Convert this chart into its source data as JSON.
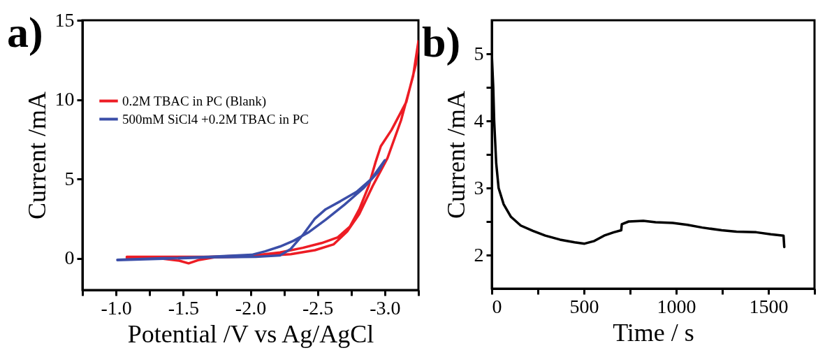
{
  "chart_data": [
    {
      "type": "line",
      "annotations": [
        "a)"
      ],
      "xlabel": "Potential /V vs Ag/AgCl",
      "ylabel": "Current /mA",
      "xlim": [
        -0.75,
        -3.25
      ],
      "ylim": [
        -2,
        15
      ],
      "xticks": [
        {
          "value": -0.75,
          "label": null
        },
        {
          "value": -1,
          "label": "-1.0"
        },
        {
          "value": -1.25,
          "label": null
        },
        -1.5,
        {
          "value": -1.75,
          "label": null
        },
        {
          "value": -2,
          "label": "-2.0"
        },
        {
          "value": -2.25,
          "label": null
        },
        -2.5,
        {
          "value": -2.75,
          "label": null
        },
        {
          "value": -3,
          "label": "-3.0"
        },
        {
          "value": -3.25,
          "label": null
        }
      ],
      "yticks": [
        0,
        5,
        10,
        15
      ],
      "legend": "top left",
      "line_style": "solid",
      "series": [
        {
          "name": "0.2M TBAC in PC (Blank)",
          "color": "#ed1c24",
          "x": [
            -1.08,
            -1.35,
            -1.47,
            -1.54,
            -1.61,
            -1.73,
            -2.04,
            -2.3,
            -2.48,
            -2.62,
            -2.72,
            -2.81,
            -2.91,
            -3.02,
            -3.12,
            -3.21,
            -3.25,
            -3.23,
            -3.16,
            -3.05,
            -2.97,
            -2.93,
            -2.88,
            -2.81,
            -2.74,
            -2.65,
            -2.53,
            -2.39,
            -2.22,
            -2.04,
            -1.69,
            -1.35,
            -1.08
          ],
          "values": [
            0.03,
            -0.03,
            -0.15,
            -0.32,
            -0.12,
            0.06,
            0.12,
            0.26,
            0.51,
            0.88,
            1.69,
            2.79,
            4.56,
            6.32,
            8.68,
            11.47,
            13.68,
            12.2,
            9.85,
            8.09,
            7.06,
            6.03,
            4.56,
            3.09,
            1.99,
            1.32,
            0.96,
            0.66,
            0.37,
            0.19,
            0.09,
            0.09,
            0.09
          ]
        },
        {
          "name": "500mM SiCl4 +0.2M TBAC in PC",
          "color": "#3b4ea8",
          "x": [
            -1.01,
            -1.35,
            -1.69,
            -2.04,
            -2.22,
            -2.3,
            -2.39,
            -2.48,
            -2.56,
            -2.67,
            -2.79,
            -2.9,
            -3.0,
            -2.95,
            -2.84,
            -2.7,
            -2.56,
            -2.43,
            -2.32,
            -2.22,
            -2.11,
            -2.01,
            -1.69,
            -1.35,
            -1.01
          ],
          "values": [
            -0.12,
            -0.03,
            0.06,
            0.09,
            0.18,
            0.59,
            1.47,
            2.5,
            3.09,
            3.6,
            4.19,
            5.0,
            6.18,
            5.44,
            4.41,
            3.38,
            2.43,
            1.62,
            1.1,
            0.74,
            0.44,
            0.22,
            0.09,
            0.0,
            -0.09
          ]
        }
      ]
    },
    {
      "type": "line",
      "annotations": [
        "b)"
      ],
      "xlabel": "Time / s",
      "ylabel": "Current /mA",
      "xlim": [
        0,
        1750
      ],
      "ylim": [
        1.5,
        5.5
      ],
      "xticks": [
        0,
        {
          "value": 250,
          "label": null
        },
        500,
        {
          "value": 750,
          "label": null
        },
        1000,
        {
          "value": 1250,
          "label": null
        },
        1500,
        {
          "value": 1750,
          "label": null
        }
      ],
      "yticks": [
        2,
        {
          "value": 2.5,
          "label": null
        },
        3,
        {
          "value": 3.5,
          "label": null
        },
        4,
        {
          "value": 4.5,
          "label": null
        },
        5
      ],
      "line_style": "solid",
      "series": [
        {
          "color": "#000000",
          "x": [
            0,
            8,
            13,
            24,
            37,
            64,
            104,
            157,
            223,
            290,
            370,
            449,
            503,
            556,
            609,
            662,
            702,
            705,
            742,
            822,
            888,
            981,
            1061,
            1141,
            1247,
            1327,
            1434,
            1513,
            1582,
            1586
          ],
          "values": [
            5.0,
            4.5,
            4.0,
            3.37,
            3.0,
            2.76,
            2.57,
            2.44,
            2.36,
            2.29,
            2.23,
            2.19,
            2.17,
            2.21,
            2.29,
            2.34,
            2.37,
            2.46,
            2.5,
            2.51,
            2.49,
            2.48,
            2.45,
            2.41,
            2.37,
            2.35,
            2.34,
            2.31,
            2.29,
            2.12
          ]
        }
      ]
    }
  ]
}
